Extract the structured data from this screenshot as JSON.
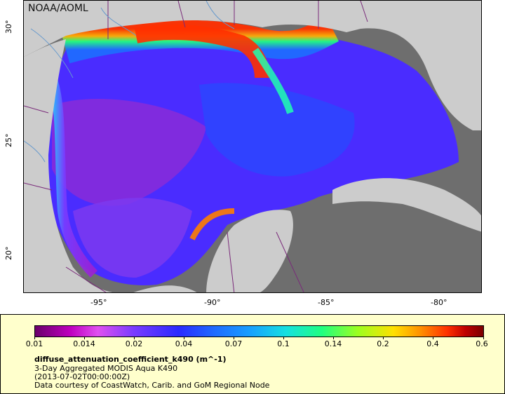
{
  "map": {
    "credit": "NOAA/AOML",
    "lat_labels": [
      "30°",
      "25°",
      "20°"
    ],
    "lon_labels": [
      "-95°",
      "-90°",
      "-85°",
      "-80°"
    ],
    "colors": {
      "land": "#cccccc",
      "nodata": "#6e6e6e",
      "border": "#7a2a7a",
      "river": "#6699cc"
    }
  },
  "legend": {
    "ticks": [
      "0.01",
      "0.014",
      "0.02",
      "0.04",
      "0.07",
      "0.1",
      "0.14",
      "0.2",
      "0.4",
      "0.6"
    ],
    "variable": "diffuse_attenuation_coefficient_k490 (m^-1)",
    "description": "3-Day Aggregated MODIS Aqua K490",
    "time": "(2013-07-02T00:00:00Z)",
    "source": "Data courtesy of CoastWatch, Carib. and GoM Regional Node"
  }
}
